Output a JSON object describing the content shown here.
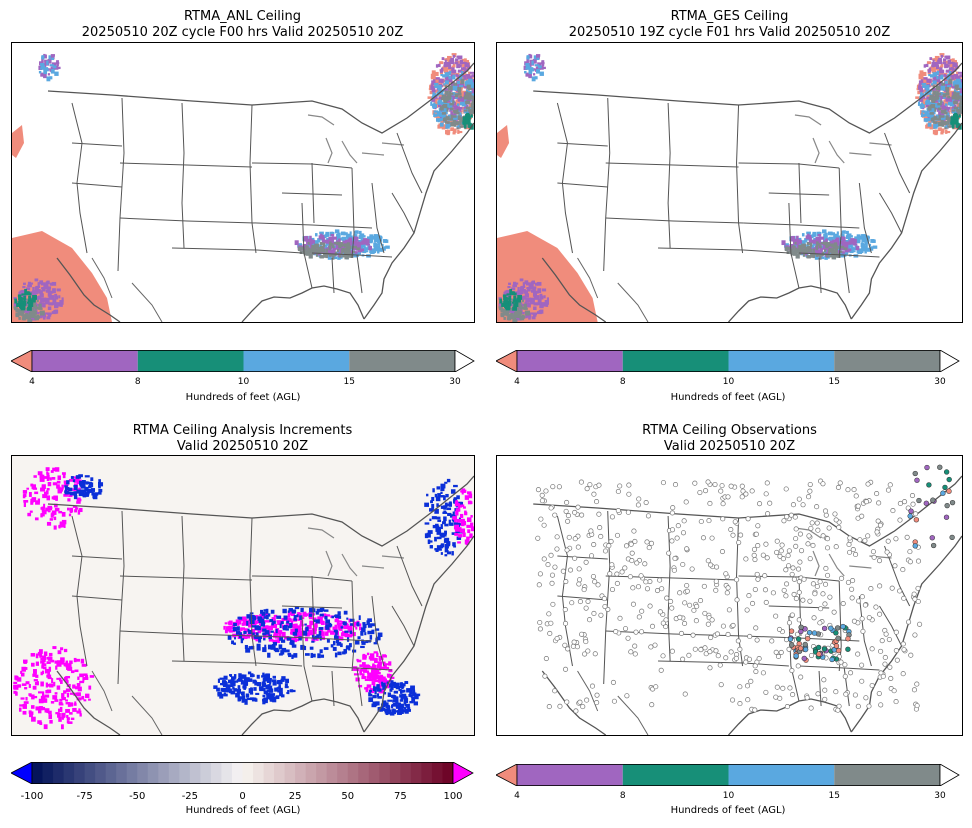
{
  "panels": {
    "p1": {
      "title_line1": "RTMA_ANL Ceiling",
      "title_line2": "20250510 20Z cycle F00 hrs Valid 20250510 20Z"
    },
    "p2": {
      "title_line1": "RTMA_GES Ceiling",
      "title_line2": "20250510 19Z cycle F01 hrs Valid 20250510 20Z"
    },
    "p3": {
      "title_line1": "RTMA Ceiling Analysis Increments",
      "title_line2": "Valid 20250510 20Z"
    },
    "p4": {
      "title_line1": "RTMA Ceiling Observations",
      "title_line2": "Valid 20250510 20Z"
    }
  },
  "colorbars": {
    "ceiling": {
      "label": "Hundreds of feet (AGL)",
      "ticks": [
        "4",
        "8",
        "10",
        "15",
        "30"
      ],
      "colors": {
        "under": "#f08c7c",
        "bins": [
          "#a066c0",
          "#178f78",
          "#5aa8e0",
          "#808a8a"
        ],
        "over": "#ffffff"
      }
    },
    "increment": {
      "label": "Hundreds of feet (AGL)",
      "ticks": [
        "-100",
        "-75",
        "-50",
        "-25",
        "0",
        "25",
        "50",
        "75",
        "100"
      ],
      "colors": {
        "under": "#0000ff",
        "over": "#ff00ff"
      }
    }
  },
  "map_colors": {
    "land": "#ffffff",
    "increment_background": "#f7f4f1",
    "negative_increment": "#0b2fd8",
    "positive_increment": "#ff00ff",
    "boundary": "#555555"
  }
}
